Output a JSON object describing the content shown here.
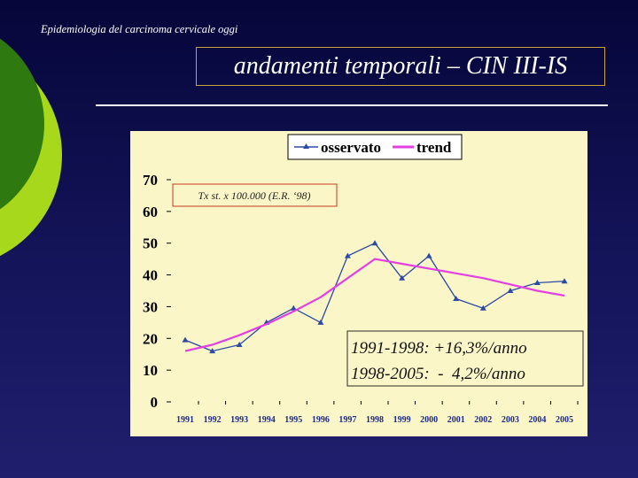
{
  "slide": {
    "subtitle": "Epidemiologia del carcinoma cervicale oggi",
    "title": "andamenti temporali – CIN III-IS"
  },
  "chart_data": {
    "type": "line",
    "categories": [
      "1991",
      "1992",
      "1993",
      "1994",
      "1995",
      "1996",
      "1997",
      "1998",
      "1999",
      "2000",
      "2001",
      "2002",
      "2003",
      "2004",
      "2005"
    ],
    "series": [
      {
        "name": "osservato",
        "color": "#2b4aa8",
        "values": [
          19.5,
          16,
          18,
          25,
          29.5,
          25,
          46,
          50,
          39,
          46,
          32.5,
          29.5,
          35,
          37.5,
          38
        ]
      },
      {
        "name": "trend",
        "color": "#e33fe3",
        "values": [
          16,
          18,
          21,
          24.5,
          28.5,
          33,
          39,
          45,
          43.5,
          42,
          40.5,
          39,
          37,
          35,
          33.5
        ]
      }
    ],
    "ylim": [
      0,
      70
    ],
    "yticks": [
      0,
      10,
      20,
      30,
      40,
      50,
      60,
      70
    ],
    "legend_position": "top-right",
    "annotation_box": "Tx st. x 100.000 (E.R. ‘98)",
    "stats": {
      "line1": "1991-1998: +16,3%/anno",
      "line2": "1998-2005:  -  4,2%/anno"
    },
    "colors": {
      "plot_background": "#fbf6c8",
      "annotation_border": "#c53b1e",
      "stats_border": "#2b2b2b"
    }
  }
}
